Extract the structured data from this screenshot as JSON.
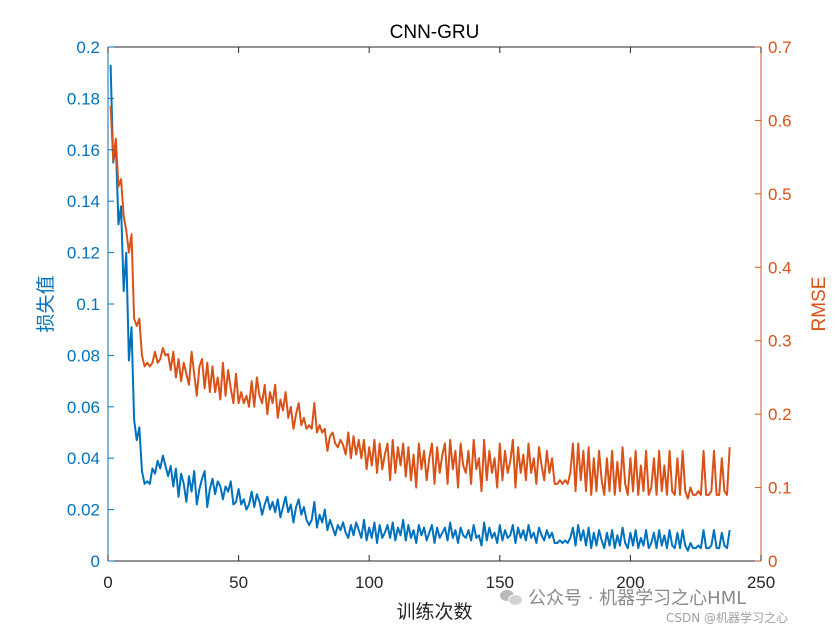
{
  "chart_data": {
    "type": "line",
    "title": "CNN-GRU",
    "xlabel": "训练次数",
    "xlim": [
      0,
      250
    ],
    "xticks": [
      0,
      50,
      100,
      150,
      200,
      250
    ],
    "y_left": {
      "label": "损失值",
      "lim": [
        0,
        0.2
      ],
      "ticks": [
        0,
        0.02,
        0.04,
        0.06,
        0.08,
        0.1,
        0.12,
        0.14,
        0.16,
        0.18,
        0.2
      ],
      "color": "#0072BD"
    },
    "y_right": {
      "label": "RMSE",
      "lim": [
        0,
        0.7
      ],
      "ticks": [
        0,
        0.1,
        0.2,
        0.3,
        0.4,
        0.5,
        0.6,
        0.7
      ],
      "color": "#D95319"
    },
    "grid": false,
    "series": [
      {
        "axis": "left",
        "color": "#0072BD",
        "values": [
          0.193,
          0.155,
          0.162,
          0.131,
          0.138,
          0.105,
          0.12,
          0.078,
          0.091,
          0.055,
          0.047,
          0.052,
          0.035,
          0.03,
          0.031,
          0.03,
          0.036,
          0.034,
          0.039,
          0.036,
          0.041,
          0.037,
          0.033,
          0.037,
          0.029,
          0.036,
          0.025,
          0.034,
          0.03,
          0.023,
          0.033,
          0.027,
          0.035,
          0.022,
          0.028,
          0.032,
          0.035,
          0.021,
          0.028,
          0.032,
          0.026,
          0.031,
          0.029,
          0.024,
          0.029,
          0.027,
          0.031,
          0.022,
          0.023,
          0.028,
          0.022,
          0.024,
          0.02,
          0.022,
          0.027,
          0.021,
          0.026,
          0.023,
          0.018,
          0.022,
          0.025,
          0.02,
          0.023,
          0.019,
          0.024,
          0.017,
          0.021,
          0.025,
          0.019,
          0.022,
          0.015,
          0.021,
          0.024,
          0.018,
          0.021,
          0.016,
          0.014,
          0.016,
          0.023,
          0.013,
          0.018,
          0.015,
          0.02,
          0.012,
          0.016,
          0.013,
          0.01,
          0.014,
          0.012,
          0.015,
          0.011,
          0.009,
          0.014,
          0.01,
          0.015,
          0.012,
          0.009,
          0.016,
          0.008,
          0.013,
          0.009,
          0.015,
          0.007,
          0.014,
          0.009,
          0.011,
          0.014,
          0.009,
          0.015,
          0.008,
          0.013,
          0.01,
          0.016,
          0.008,
          0.014,
          0.009,
          0.012,
          0.007,
          0.014,
          0.01,
          0.013,
          0.008,
          0.011,
          0.014,
          0.007,
          0.013,
          0.009,
          0.011,
          0.013,
          0.008,
          0.015,
          0.009,
          0.012,
          0.007,
          0.013,
          0.01,
          0.009,
          0.012,
          0.008,
          0.014,
          0.009,
          0.01,
          0.006,
          0.015,
          0.008,
          0.013,
          0.009,
          0.011,
          0.007,
          0.014,
          0.008,
          0.012,
          0.009,
          0.01,
          0.014,
          0.007,
          0.013,
          0.009,
          0.012,
          0.008,
          0.014,
          0.009,
          0.011,
          0.007,
          0.013,
          0.01,
          0.008,
          0.012,
          0.009,
          0.011,
          0.007,
          0.007,
          0.008,
          0.007,
          0.008,
          0.007,
          0.009,
          0.013,
          0.006,
          0.014,
          0.008,
          0.012,
          0.006,
          0.013,
          0.005,
          0.011,
          0.006,
          0.012,
          0.008,
          0.005,
          0.011,
          0.006,
          0.012,
          0.005,
          0.01,
          0.006,
          0.013,
          0.007,
          0.005,
          0.011,
          0.006,
          0.012,
          0.005,
          0.009,
          0.006,
          0.012,
          0.005,
          0.007,
          0.011,
          0.005,
          0.012,
          0.006,
          0.01,
          0.005,
          0.012,
          0.006,
          0.005,
          0.011,
          0.005,
          0.012,
          0.006,
          0.004,
          0.007,
          0.005,
          0.005,
          0.006,
          0.005,
          0.012,
          0.005,
          0.005,
          0.006,
          0.012,
          0.005,
          0.005,
          0.011,
          0.006,
          0.005,
          0.012
        ]
      },
      {
        "axis": "right",
        "color": "#D95319",
        "values": [
          0.62,
          0.545,
          0.575,
          0.51,
          0.52,
          0.47,
          0.45,
          0.42,
          0.445,
          0.33,
          0.32,
          0.33,
          0.28,
          0.265,
          0.27,
          0.265,
          0.27,
          0.285,
          0.27,
          0.275,
          0.29,
          0.28,
          0.282,
          0.26,
          0.285,
          0.25,
          0.275,
          0.245,
          0.27,
          0.255,
          0.24,
          0.285,
          0.255,
          0.225,
          0.265,
          0.275,
          0.235,
          0.27,
          0.23,
          0.265,
          0.23,
          0.25,
          0.22,
          0.27,
          0.225,
          0.26,
          0.235,
          0.215,
          0.255,
          0.215,
          0.23,
          0.215,
          0.225,
          0.21,
          0.245,
          0.21,
          0.25,
          0.225,
          0.215,
          0.24,
          0.2,
          0.23,
          0.215,
          0.24,
          0.195,
          0.22,
          0.205,
          0.23,
          0.195,
          0.21,
          0.18,
          0.2,
          0.215,
          0.185,
          0.195,
          0.18,
          0.185,
          0.18,
          0.215,
          0.175,
          0.185,
          0.175,
          0.18,
          0.15,
          0.17,
          0.175,
          0.16,
          0.155,
          0.165,
          0.158,
          0.145,
          0.175,
          0.14,
          0.17,
          0.145,
          0.165,
          0.14,
          0.165,
          0.125,
          0.155,
          0.13,
          0.165,
          0.12,
          0.16,
          0.125,
          0.145,
          0.16,
          0.11,
          0.165,
          0.12,
          0.155,
          0.13,
          0.16,
          0.115,
          0.155,
          0.11,
          0.145,
          0.1,
          0.16,
          0.125,
          0.15,
          0.11,
          0.14,
          0.16,
          0.105,
          0.155,
          0.12,
          0.145,
          0.16,
          0.105,
          0.165,
          0.125,
          0.15,
          0.1,
          0.16,
          0.13,
          0.12,
          0.15,
          0.105,
          0.165,
          0.125,
          0.14,
          0.095,
          0.165,
          0.11,
          0.15,
          0.12,
          0.14,
          0.1,
          0.16,
          0.11,
          0.15,
          0.12,
          0.135,
          0.165,
          0.1,
          0.155,
          0.12,
          0.145,
          0.11,
          0.16,
          0.12,
          0.14,
          0.105,
          0.155,
          0.13,
          0.11,
          0.15,
          0.12,
          0.14,
          0.105,
          0.105,
          0.11,
          0.105,
          0.11,
          0.105,
          0.12,
          0.16,
          0.095,
          0.16,
          0.11,
          0.15,
          0.095,
          0.155,
          0.09,
          0.14,
          0.095,
          0.15,
          0.11,
          0.09,
          0.14,
          0.095,
          0.15,
          0.09,
          0.135,
          0.095,
          0.155,
          0.105,
          0.09,
          0.14,
          0.095,
          0.15,
          0.09,
          0.13,
          0.095,
          0.15,
          0.09,
          0.1,
          0.14,
          0.09,
          0.15,
          0.095,
          0.13,
          0.09,
          0.15,
          0.095,
          0.09,
          0.14,
          0.09,
          0.15,
          0.095,
          0.085,
          0.1,
          0.09,
          0.09,
          0.095,
          0.09,
          0.15,
          0.09,
          0.09,
          0.095,
          0.15,
          0.09,
          0.09,
          0.14,
          0.095,
          0.09,
          0.155
        ]
      }
    ]
  },
  "watermark": {
    "badge": "公众号 · 机器学习之心HML",
    "source": "CSDN @机器学习之心"
  }
}
